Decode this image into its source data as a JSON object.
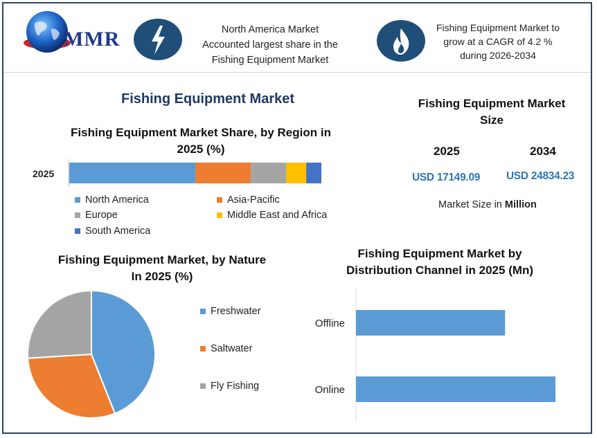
{
  "header": {
    "logo_text": "MMR",
    "highlight_1": "North America Market Accounted largest share in the Fishing Equipment Market",
    "highlight_1_lines": [
      "North America Market",
      "Accounted largest share in the",
      "Fishing Equipment Market"
    ],
    "highlight_2_lines": [
      "Fishing Equipment Market to",
      "grow at a CAGR of 4.2 %",
      "during 2026-2034"
    ],
    "icon_1": "lightning-icon",
    "icon_2": "flame-icon"
  },
  "main_title": "Fishing Equipment Market",
  "market_size": {
    "title_lines": [
      "Fishing Equipment Market",
      "Size"
    ],
    "year_1": "2025",
    "year_2": "2034",
    "value_1": "USD 17149.09",
    "value_2": "USD 24834.23",
    "unit_prefix": "Market Size in ",
    "unit_bold": "Million"
  },
  "colors": {
    "blue": "#5b9bd5",
    "orange": "#ed7d31",
    "gray": "#a5a5a5",
    "yellow": "#ffc000",
    "dark_blue": "#4472c4",
    "navy": "#1f4e79"
  },
  "chart_data": [
    {
      "type": "bar",
      "orientation": "horizontal-stacked",
      "title": "Fishing Equipment Market Share, by Region in 2025 (%)",
      "title_lines": [
        "Fishing Equipment Market Share, by Region in",
        "2025 (%)"
      ],
      "categories": [
        "2025"
      ],
      "series": [
        {
          "name": "North America",
          "values": [
            50
          ],
          "color": "#5b9bd5"
        },
        {
          "name": "Asia-Pacific",
          "values": [
            22
          ],
          "color": "#ed7d31"
        },
        {
          "name": "Europe",
          "values": [
            14
          ],
          "color": "#a5a5a5"
        },
        {
          "name": "Middle East and Africa",
          "values": [
            8
          ],
          "color": "#ffc000"
        },
        {
          "name": "South America",
          "values": [
            6
          ],
          "color": "#4472c4"
        }
      ],
      "legend_placement": "bottom"
    },
    {
      "type": "pie",
      "title": "Fishing Equipment Market, by Nature In 2025 (%)",
      "title_lines": [
        "Fishing Equipment Market, by Nature",
        "In 2025 (%)"
      ],
      "categories": [
        "Freshwater",
        "Saltwater",
        "Fly Fishing"
      ],
      "values": [
        44,
        30,
        26
      ],
      "colors": [
        "#5b9bd5",
        "#ed7d31",
        "#a5a5a5"
      ],
      "legend_placement": "right"
    },
    {
      "type": "bar",
      "orientation": "horizontal",
      "title": "Fishing Equipment Market by Distribution Channel in 2025 (Mn)",
      "title_lines": [
        "Fishing Equipment Market by",
        "Distribution Channel in 2025 (Mn)"
      ],
      "categories": [
        "Offline",
        "Online"
      ],
      "values": [
        7400,
        9900
      ],
      "xlim": [
        0,
        11000
      ],
      "color": "#5b9bd5"
    }
  ]
}
